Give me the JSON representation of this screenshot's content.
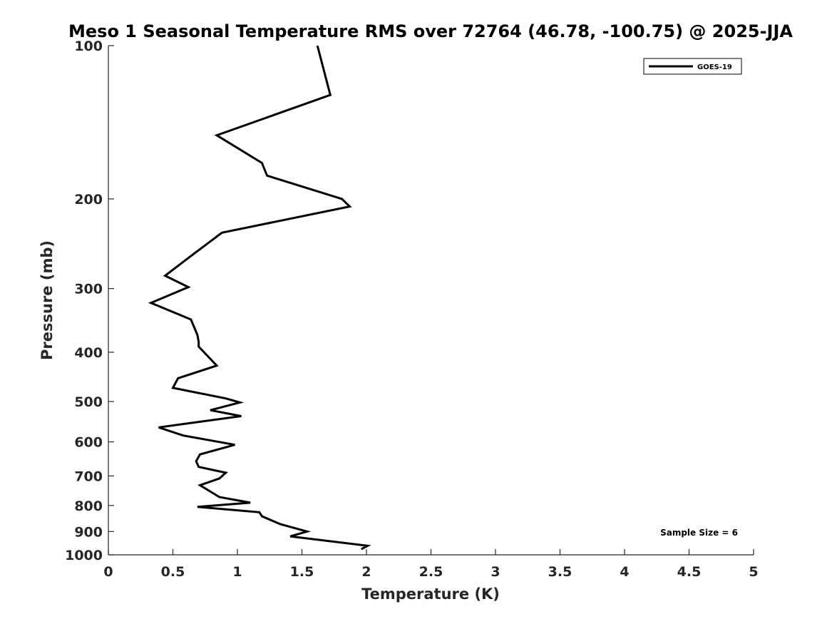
{
  "chart_data": {
    "type": "line",
    "title": "Meso 1 Seasonal Temperature RMS over 72764 (46.78, -100.75) @ 2025-JJA",
    "xlabel": "Temperature (K)",
    "ylabel": "Pressure (mb)",
    "xlim": [
      0,
      5
    ],
    "ylim": [
      100,
      1000
    ],
    "y_scale": "log",
    "y_reversed": true,
    "grid": false,
    "legend_position": "top-right",
    "x_ticks": [
      "0",
      "0.5",
      "1",
      "1.5",
      "2",
      "2.5",
      "3",
      "3.5",
      "4",
      "4.5",
      "5"
    ],
    "y_ticks": [
      "100",
      "200",
      "300",
      "400",
      "500",
      "600",
      "700",
      "800",
      "900",
      "1000"
    ],
    "annotation": "Sample Size = 6",
    "series": [
      {
        "name": "GOES-19",
        "color": "#000000",
        "points": [
          [
            1.62,
            100
          ],
          [
            1.72,
            125
          ],
          [
            0.84,
            150
          ],
          [
            1.19,
            170
          ],
          [
            1.23,
            180
          ],
          [
            1.81,
            200
          ],
          [
            1.87,
            207
          ],
          [
            0.88,
            233
          ],
          [
            0.63,
            260
          ],
          [
            0.44,
            283
          ],
          [
            0.62,
            298
          ],
          [
            0.33,
            320
          ],
          [
            0.64,
            345
          ],
          [
            0.69,
            370
          ],
          [
            0.7,
            382
          ],
          [
            0.7,
            390
          ],
          [
            0.84,
            425
          ],
          [
            0.54,
            450
          ],
          [
            0.5,
            470
          ],
          [
            0.91,
            493
          ],
          [
            1.02,
            502
          ],
          [
            0.79,
            520
          ],
          [
            1.03,
            534
          ],
          [
            0.39,
            562
          ],
          [
            0.58,
            583
          ],
          [
            0.98,
            608
          ],
          [
            0.71,
            635
          ],
          [
            0.68,
            655
          ],
          [
            0.7,
            672
          ],
          [
            0.91,
            690
          ],
          [
            0.86,
            708
          ],
          [
            0.71,
            730
          ],
          [
            0.86,
            770
          ],
          [
            1.1,
            790
          ],
          [
            0.69,
            805
          ],
          [
            1.17,
            825
          ],
          [
            1.19,
            840
          ],
          [
            1.33,
            870
          ],
          [
            1.54,
            900
          ],
          [
            1.41,
            920
          ],
          [
            2.01,
            960
          ],
          [
            1.96,
            975
          ]
        ]
      }
    ]
  }
}
